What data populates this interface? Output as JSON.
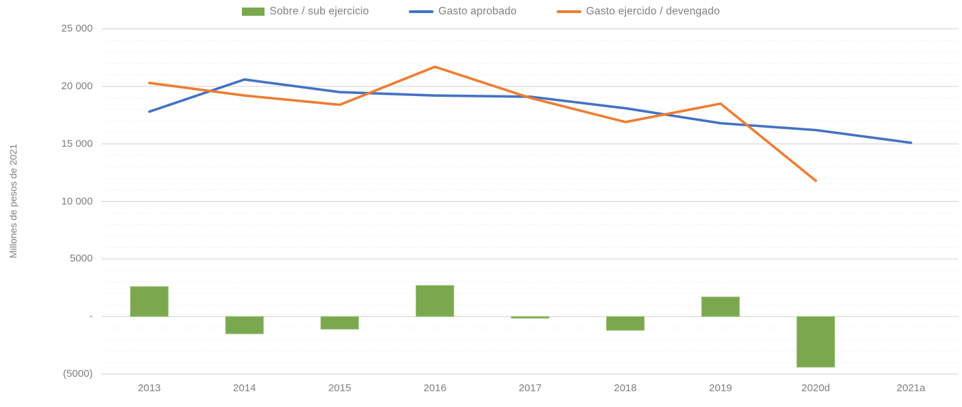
{
  "chart_data": {
    "type": "combo",
    "title": "",
    "categories": [
      "2013",
      "2014",
      "2015",
      "2016",
      "2017",
      "2018",
      "2019",
      "2020d",
      "2021a"
    ],
    "series": [
      {
        "name": "Sobre / sub ejercicio",
        "type": "bar",
        "color": "#7BA84F",
        "border_color": "#9CC178",
        "values": [
          2600,
          -1500,
          -1100,
          2700,
          -150,
          -1200,
          1700,
          -4400,
          null
        ]
      },
      {
        "name": "Gasto aprobado",
        "type": "line",
        "color": "#4472C4",
        "values": [
          17800,
          20600,
          19500,
          19200,
          19100,
          18100,
          16800,
          16200,
          15100
        ]
      },
      {
        "name": "Gasto ejercido / devengado",
        "type": "line",
        "color": "#ED7D31",
        "values": [
          20300,
          19200,
          18400,
          21700,
          19000,
          16900,
          18500,
          11800,
          null
        ]
      }
    ],
    "xlabel": "",
    "ylabel": "Millones de pesos de 2021",
    "ylim": [
      -5000,
      25000
    ],
    "ytick_interval_major": 5000,
    "ytick_interval_minor": 1000,
    "ytick_labels": [
      "25 000",
      "20 000",
      "15 000",
      "10 000",
      "5000",
      "-",
      "(5000)"
    ],
    "legend_position": "top",
    "grid": "major-solid, minor-dotted"
  },
  "colors": {
    "text": "#7F7F7F",
    "grid_major": "#D6D6D6",
    "grid_minor": "#EDEDED",
    "background": "#FFFFFF"
  }
}
